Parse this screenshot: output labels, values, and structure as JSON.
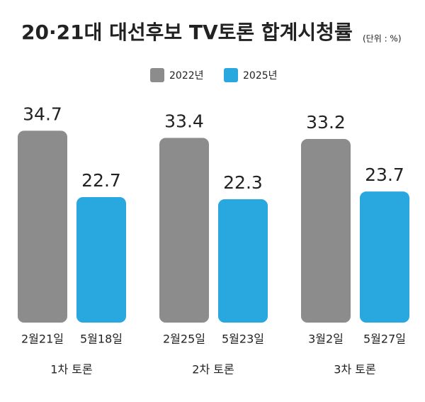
{
  "chart_data": {
    "type": "bar",
    "title": "20·21대 대선후보 TV토론 합계시청률",
    "unit": "(단위 : %)",
    "categories": [
      "1차 토론",
      "2차 토론",
      "3차 토론"
    ],
    "series": [
      {
        "name": "2022년",
        "color": "#8c8c8c",
        "values": [
          34.7,
          33.4,
          33.2
        ],
        "dates": [
          "2월21일",
          "2월25일",
          "3월2일"
        ]
      },
      {
        "name": "2025년",
        "color": "#29a8e0",
        "values": [
          22.7,
          22.3,
          23.7
        ],
        "dates": [
          "5월18일",
          "5월23일",
          "5월27일"
        ]
      }
    ],
    "category_color": "#d0102a"
  }
}
